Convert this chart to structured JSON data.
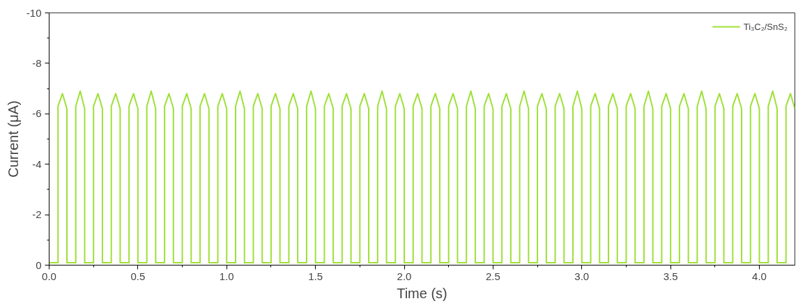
{
  "chart_data": {
    "type": "line",
    "xlabel": "Time (s)",
    "ylabel": "Current (μA)",
    "xlim": [
      0,
      4.2
    ],
    "ylim": [
      0,
      -10
    ],
    "xticks": [
      {
        "value": 0,
        "label": "0.0"
      },
      {
        "value": 0.5,
        "label": "0.5"
      },
      {
        "value": 1,
        "label": "1.0"
      },
      {
        "value": 1.5,
        "label": "1.5"
      },
      {
        "value": 2,
        "label": "2.0"
      },
      {
        "value": 2.5,
        "label": "2.5"
      },
      {
        "value": 3,
        "label": "3.0"
      },
      {
        "value": 3.5,
        "label": "3.5"
      },
      {
        "value": 4,
        "label": "4.0"
      }
    ],
    "yticks": [
      0,
      -2,
      -4,
      -6,
      -8,
      -10
    ],
    "grid": false,
    "legend": "top right",
    "marker": "none",
    "line_style": "solid",
    "series": [
      {
        "name": "Ti₃C₂/SnS₂",
        "color": "#9ee037",
        "x": [
          0,
          0.05,
          0.05,
          0.075,
          0.1,
          0.1,
          0.15,
          0.15,
          0.175,
          0.2,
          0.2,
          0.25,
          0.25,
          0.275,
          0.3,
          0.3,
          0.35,
          0.35,
          0.375,
          0.4,
          0.4,
          0.45,
          0.45,
          0.475,
          0.5,
          0.5,
          0.55,
          0.55,
          0.575,
          0.6,
          0.6,
          0.65,
          0.65,
          0.675,
          0.7,
          0.7,
          0.75,
          0.75,
          0.775,
          0.8,
          0.8,
          0.85,
          0.85,
          0.875,
          0.9,
          0.9,
          0.95,
          0.95,
          0.975,
          1.0,
          1.0,
          1.05,
          1.05,
          1.075,
          1.1,
          1.1,
          1.15,
          1.15,
          1.175,
          1.2,
          1.2,
          1.25,
          1.25,
          1.275,
          1.3,
          1.3,
          1.35,
          1.35,
          1.375,
          1.4,
          1.4,
          1.45,
          1.45,
          1.475,
          1.5,
          1.5,
          1.55,
          1.55,
          1.575,
          1.6,
          1.6,
          1.65,
          1.65,
          1.675,
          1.7,
          1.7,
          1.75,
          1.75,
          1.775,
          1.8,
          1.8,
          1.85,
          1.85,
          1.875,
          1.9,
          1.9,
          1.95,
          1.95,
          1.975,
          2.0,
          2.0,
          2.05,
          2.05,
          2.075,
          2.1,
          2.1,
          2.15,
          2.15,
          2.175,
          2.2,
          2.2,
          2.25,
          2.25,
          2.275,
          2.3,
          2.3,
          2.35,
          2.35,
          2.375,
          2.4,
          2.4,
          2.45,
          2.45,
          2.475,
          2.5,
          2.5,
          2.55,
          2.55,
          2.575,
          2.6,
          2.6,
          2.65,
          2.65,
          2.675,
          2.7,
          2.7,
          2.75,
          2.75,
          2.775,
          2.8,
          2.8,
          2.85,
          2.85,
          2.875,
          2.9,
          2.9,
          2.95,
          2.95,
          2.975,
          3.0,
          3.0,
          3.05,
          3.05,
          3.075,
          3.1,
          3.1,
          3.15,
          3.15,
          3.175,
          3.2,
          3.2,
          3.25,
          3.25,
          3.275,
          3.3,
          3.3,
          3.35,
          3.35,
          3.375,
          3.4,
          3.4,
          3.45,
          3.45,
          3.475,
          3.5,
          3.5,
          3.55,
          3.55,
          3.575,
          3.6,
          3.6,
          3.65,
          3.65,
          3.675,
          3.7,
          3.7,
          3.75,
          3.75,
          3.775,
          3.8,
          3.8,
          3.85,
          3.85,
          3.875,
          3.9,
          3.9,
          3.95,
          3.95,
          3.975,
          4.0,
          4.0,
          4.05,
          4.05,
          4.075,
          4.1,
          4.1,
          4.15,
          4.15,
          4.175,
          4.2
        ],
        "values": [
          -0.1,
          -0.1,
          -6.3,
          -6.8,
          -6.2,
          -0.1,
          -0.1,
          -6.3,
          -6.9,
          -6.2,
          -0.1,
          -0.1,
          -6.3,
          -6.8,
          -6.2,
          -0.1,
          -0.1,
          -6.3,
          -6.8,
          -6.2,
          -0.1,
          -0.1,
          -6.3,
          -6.8,
          -6.2,
          -0.1,
          -0.1,
          -6.3,
          -6.9,
          -6.2,
          -0.1,
          -0.1,
          -6.3,
          -6.8,
          -6.2,
          -0.1,
          -0.1,
          -6.3,
          -6.8,
          -6.2,
          -0.1,
          -0.1,
          -6.3,
          -6.8,
          -6.2,
          -0.1,
          -0.1,
          -6.3,
          -6.8,
          -6.2,
          -0.1,
          -0.1,
          -6.3,
          -6.9,
          -6.2,
          -0.1,
          -0.1,
          -6.3,
          -6.8,
          -6.2,
          -0.1,
          -0.1,
          -6.3,
          -6.8,
          -6.2,
          -0.1,
          -0.1,
          -6.3,
          -6.8,
          -6.2,
          -0.1,
          -0.1,
          -6.3,
          -6.9,
          -6.2,
          -0.1,
          -0.1,
          -6.3,
          -6.8,
          -6.2,
          -0.1,
          -0.1,
          -6.3,
          -6.8,
          -6.2,
          -0.1,
          -0.1,
          -6.3,
          -6.8,
          -6.2,
          -0.1,
          -0.1,
          -6.3,
          -6.9,
          -6.2,
          -0.1,
          -0.1,
          -6.3,
          -6.8,
          -6.2,
          -0.1,
          -0.1,
          -6.3,
          -6.8,
          -6.2,
          -0.1,
          -0.1,
          -6.3,
          -6.8,
          -6.2,
          -0.1,
          -0.1,
          -6.3,
          -6.8,
          -6.2,
          -0.1,
          -0.1,
          -6.3,
          -6.9,
          -6.2,
          -0.1,
          -0.1,
          -6.3,
          -6.8,
          -6.2,
          -0.1,
          -0.1,
          -6.3,
          -6.8,
          -6.2,
          -0.1,
          -0.1,
          -6.3,
          -6.9,
          -6.2,
          -0.1,
          -0.1,
          -6.3,
          -6.8,
          -6.2,
          -0.1,
          -0.1,
          -6.3,
          -6.8,
          -6.2,
          -0.1,
          -0.1,
          -6.3,
          -6.9,
          -6.2,
          -0.1,
          -0.1,
          -6.3,
          -6.8,
          -6.2,
          -0.1,
          -0.1,
          -6.3,
          -6.8,
          -6.2,
          -0.1,
          -0.1,
          -6.3,
          -6.8,
          -6.2,
          -0.1,
          -0.1,
          -6.3,
          -6.9,
          -6.2,
          -0.1,
          -0.1,
          -6.3,
          -6.8,
          -6.2,
          -0.1,
          -0.1,
          -6.3,
          -6.8,
          -6.2,
          -0.1,
          -0.1,
          -6.3,
          -6.9,
          -6.2,
          -0.1,
          -0.1,
          -6.3,
          -6.8,
          -6.2,
          -0.1,
          -0.1,
          -6.3,
          -6.8,
          -6.2,
          -0.1,
          -0.1,
          -6.3,
          -6.8,
          -6.2,
          -0.1,
          -0.1,
          -6.3,
          -6.9,
          -6.2,
          -0.1,
          -0.1,
          -6.3,
          -6.8,
          -6.2
        ]
      }
    ]
  }
}
